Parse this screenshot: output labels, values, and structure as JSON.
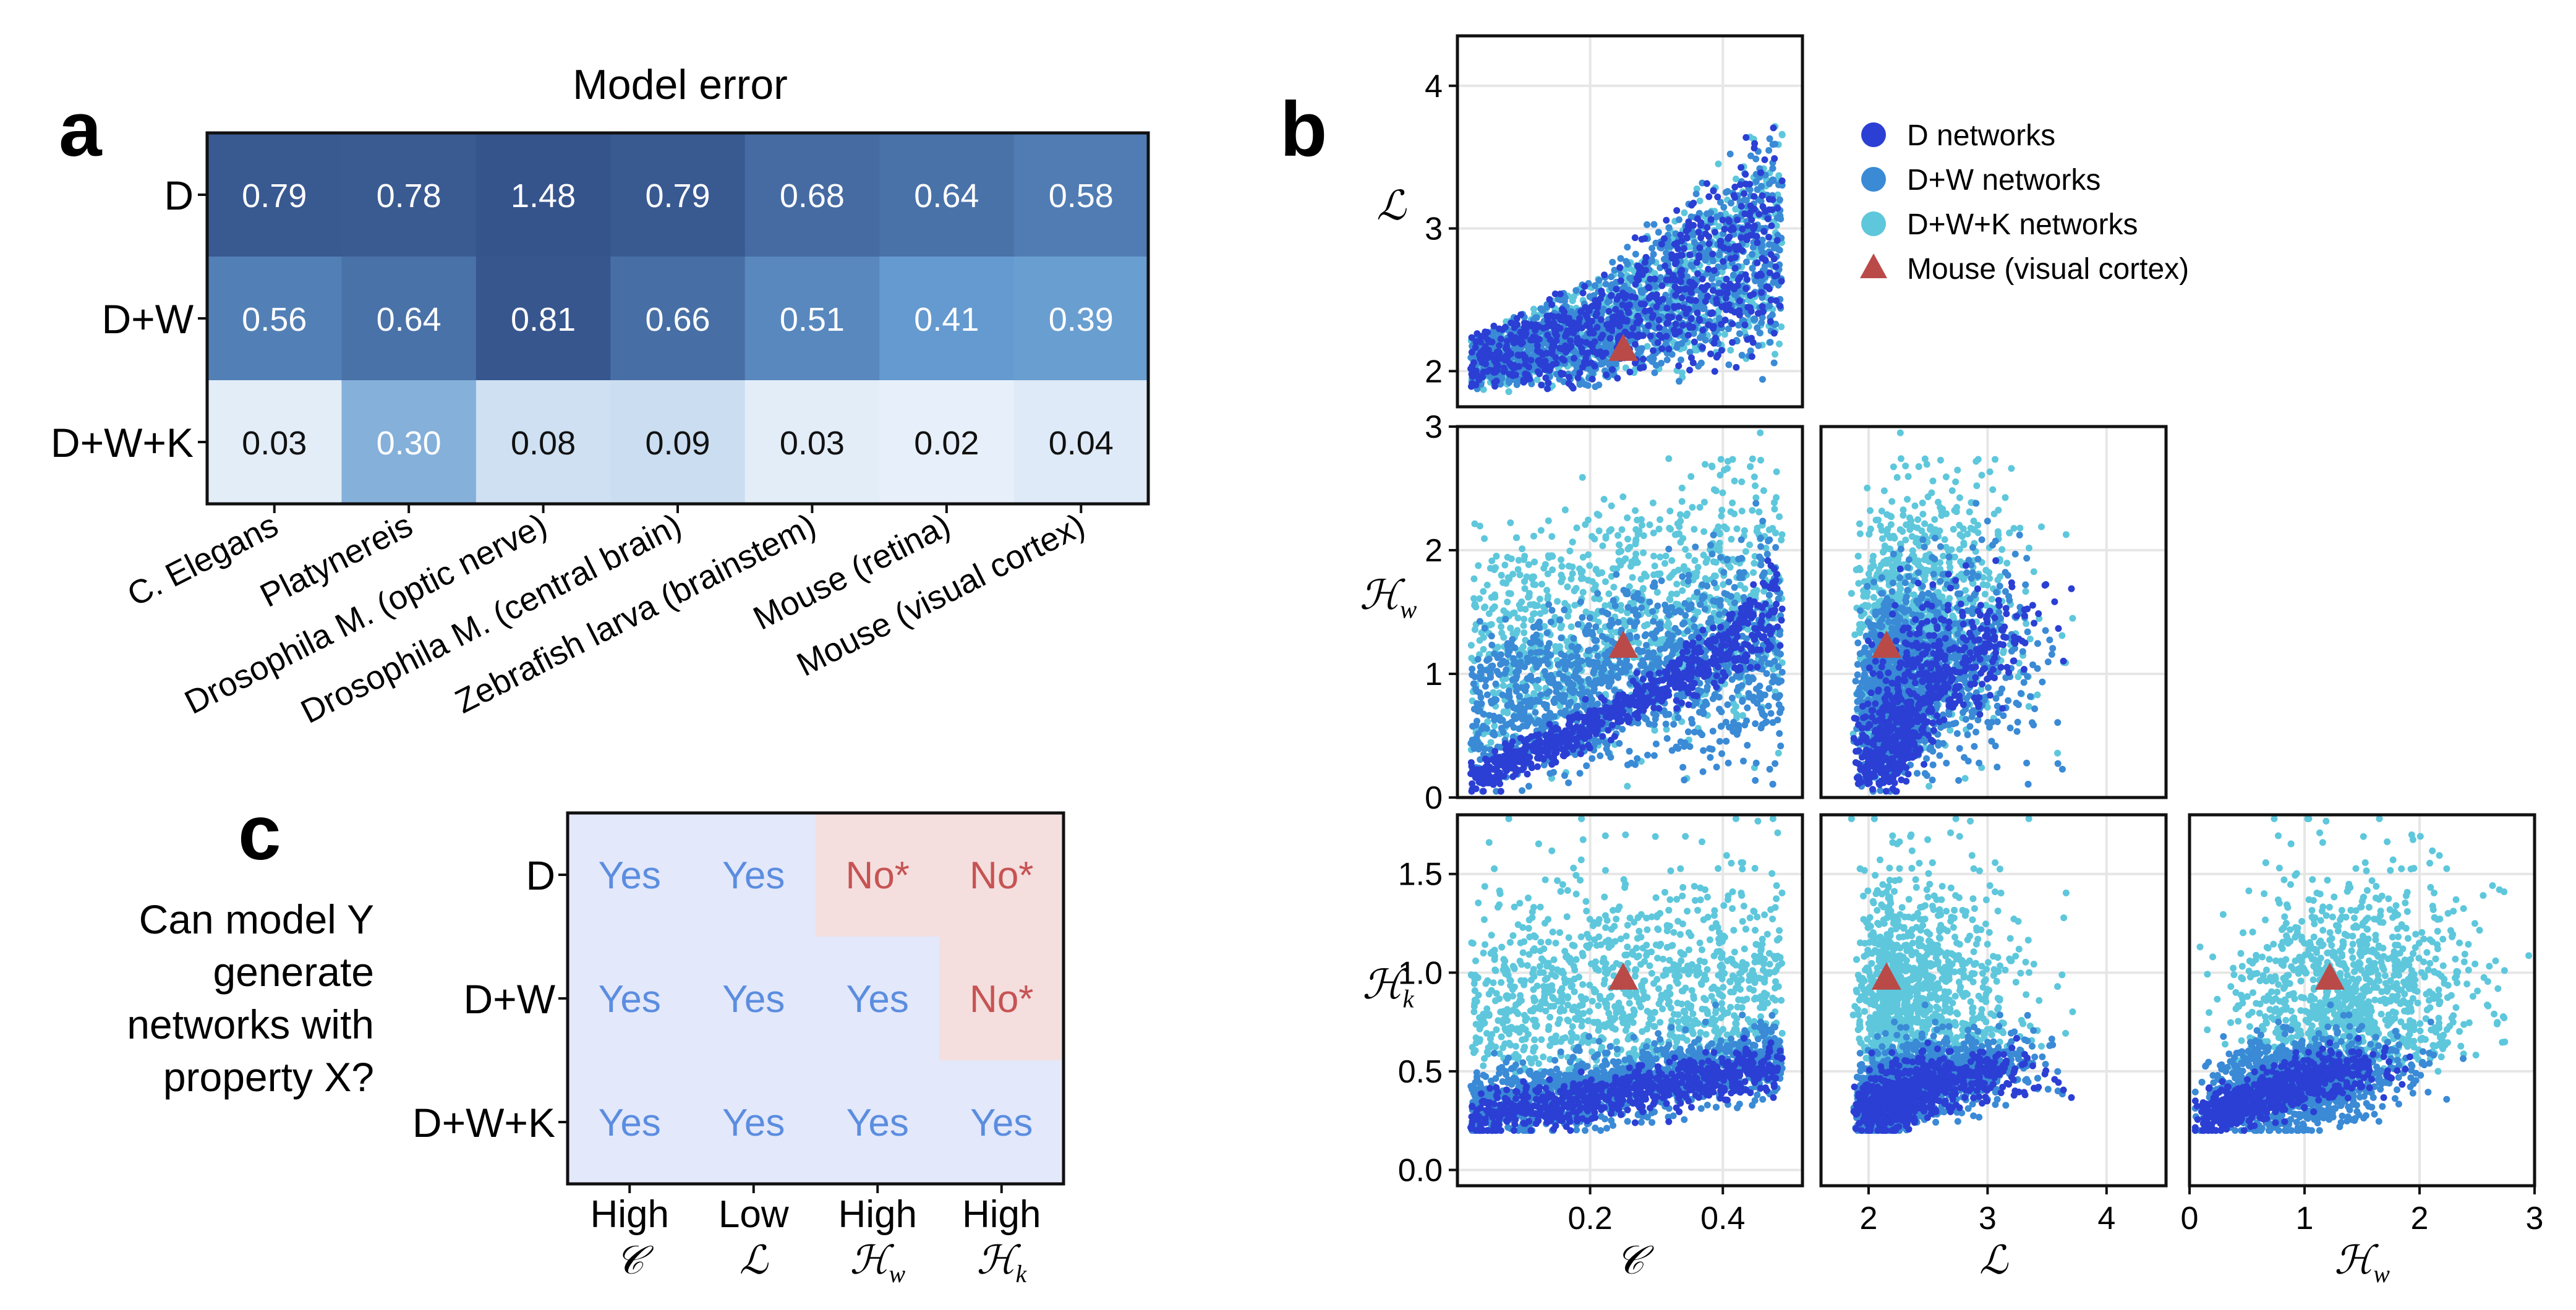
{
  "panels": {
    "a": {
      "label": "a",
      "title": "Model error",
      "rows": [
        "D",
        "D+W",
        "D+W+K"
      ],
      "columns": [
        "C. Elegans",
        "Platynereis",
        "Drosophila M. (optic nerve)",
        "Drosophila M. (central brain)",
        "Zebrafish larva (brainstem)",
        "Mouse (retina)",
        "Mouse (visual cortex)"
      ],
      "values": [
        [
          "0.79",
          "0.78",
          "1.48",
          "0.79",
          "0.68",
          "0.64",
          "0.58"
        ],
        [
          "0.56",
          "0.64",
          "0.81",
          "0.66",
          "0.51",
          "0.41",
          "0.39"
        ],
        [
          "0.03",
          "0.30",
          "0.08",
          "0.09",
          "0.03",
          "0.02",
          "0.04"
        ]
      ]
    },
    "b": {
      "label": "b",
      "legend": [
        {
          "label": "D networks",
          "color": "#2b3fd4",
          "shape": "circle"
        },
        {
          "label": "D+W networks",
          "color": "#3a8ad6",
          "shape": "circle"
        },
        {
          "label": "D+W+K networks",
          "color": "#5ec7dc",
          "shape": "circle"
        },
        {
          "label": "Mouse (visual cortex)",
          "color": "#b94a48",
          "shape": "triangle"
        }
      ],
      "row_labels": [
        {
          "sym": "ℒ",
          "sub": ""
        },
        {
          "sym": "ℋ",
          "sub": "w"
        },
        {
          "sym": "ℋ",
          "sub": "k"
        }
      ],
      "col_labels": [
        {
          "sym": "𝒞",
          "sub": ""
        },
        {
          "sym": "ℒ",
          "sub": ""
        },
        {
          "sym": "ℋ",
          "sub": "w"
        }
      ],
      "mouse_point": {
        "C": 0.25,
        "L": 2.15,
        "Hw": 1.22,
        "Hk": 0.97
      }
    },
    "c": {
      "label": "c",
      "question": [
        "Can model Y",
        "generate",
        "networks with",
        "property X?"
      ],
      "rows": [
        "D",
        "D+W",
        "D+W+K"
      ],
      "cols_top": [
        "High",
        "Low",
        "High",
        "High"
      ],
      "cols_sym": [
        {
          "sym": "𝒞",
          "sub": ""
        },
        {
          "sym": "ℒ",
          "sub": ""
        },
        {
          "sym": "ℋ",
          "sub": "w"
        },
        {
          "sym": "ℋ",
          "sub": "k"
        }
      ],
      "cells": [
        [
          "Yes",
          "Yes",
          "No*",
          "No*"
        ],
        [
          "Yes",
          "Yes",
          "Yes",
          "No*"
        ],
        [
          "Yes",
          "Yes",
          "Yes",
          "Yes"
        ]
      ],
      "colors": {
        "yes_bg": "#e3e8fa",
        "no_bg": "#f4dede",
        "yes_text": "#5b8de0",
        "no_text": "#c75353"
      }
    }
  },
  "chart_data": [
    {
      "type": "heatmap",
      "title": "Model error",
      "rows": [
        "D",
        "D+W",
        "D+W+K"
      ],
      "columns": [
        "C. Elegans",
        "Platynereis",
        "Drosophila M. (optic nerve)",
        "Drosophila M. (central brain)",
        "Zebrafish larva (brainstem)",
        "Mouse (retina)",
        "Mouse (visual cortex)"
      ],
      "values": [
        [
          0.79,
          0.78,
          1.48,
          0.79,
          0.68,
          0.64,
          0.58
        ],
        [
          0.56,
          0.64,
          0.81,
          0.66,
          0.51,
          0.41,
          0.39
        ],
        [
          0.03,
          0.3,
          0.08,
          0.09,
          0.03,
          0.02,
          0.04
        ]
      ]
    },
    {
      "type": "scatter",
      "series": [
        {
          "name": "D networks",
          "color": "#2b3fd4"
        },
        {
          "name": "D+W networks",
          "color": "#3a8ad6"
        },
        {
          "name": "D+W+K networks",
          "color": "#5ec7dc"
        },
        {
          "name": "Mouse (visual cortex)",
          "color": "#b94a48"
        }
      ],
      "subplots": [
        {
          "x": "C",
          "y": "L",
          "xlim": [
            0,
            0.52
          ],
          "ylim": [
            1.75,
            4.35
          ],
          "xticks": [],
          "yticks": [
            2,
            3,
            4
          ]
        },
        {
          "x": "C",
          "y": "Hw",
          "xlim": [
            0,
            0.52
          ],
          "ylim": [
            0,
            3
          ],
          "xticks": [],
          "yticks": [
            0,
            1,
            2,
            3
          ]
        },
        {
          "x": "L",
          "y": "Hw",
          "xlim": [
            1.6,
            4.5
          ],
          "ylim": [
            0,
            3
          ],
          "xticks": [],
          "yticks": []
        },
        {
          "x": "C",
          "y": "Hk",
          "xlim": [
            0,
            0.52
          ],
          "ylim": [
            -0.08,
            1.8
          ],
          "xticks": [
            0.2,
            0.4
          ],
          "yticks": [
            0.0,
            0.5,
            1.0,
            1.5
          ]
        },
        {
          "x": "L",
          "y": "Hk",
          "xlim": [
            1.6,
            4.5
          ],
          "ylim": [
            -0.08,
            1.8
          ],
          "xticks": [
            2,
            3,
            4
          ],
          "yticks": []
        },
        {
          "x": "Hw",
          "y": "Hk",
          "xlim": [
            0,
            3
          ],
          "ylim": [
            -0.08,
            1.8
          ],
          "xticks": [
            0,
            1,
            2,
            3
          ],
          "yticks": []
        }
      ],
      "mouse_point": {
        "C": 0.25,
        "L": 2.15,
        "Hw": 1.22,
        "Hk": 0.97
      }
    },
    {
      "type": "table",
      "rows": [
        "D",
        "D+W",
        "D+W+K"
      ],
      "columns": [
        "High C",
        "Low L",
        "High Hw",
        "High Hk"
      ],
      "cells": [
        [
          "Yes",
          "Yes",
          "No*",
          "No*"
        ],
        [
          "Yes",
          "Yes",
          "Yes",
          "No*"
        ],
        [
          "Yes",
          "Yes",
          "Yes",
          "Yes"
        ]
      ]
    }
  ]
}
